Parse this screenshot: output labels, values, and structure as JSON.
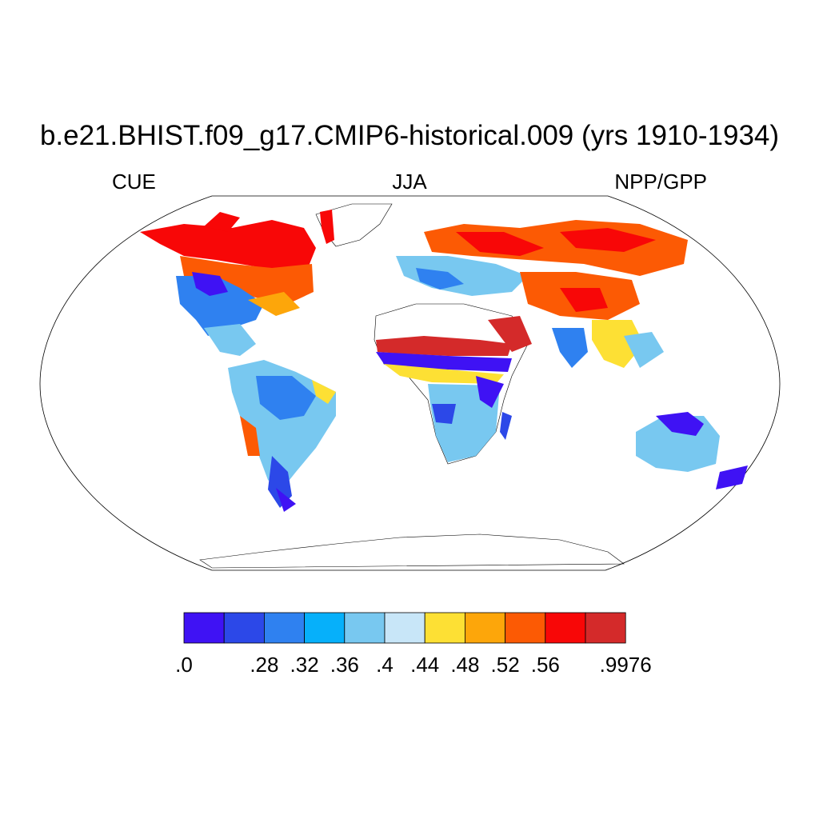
{
  "title": "b.e21.BHIST.f09_g17.CMIP6-historical.009 (yrs 1910-1934)",
  "left_label": "CUE",
  "center_label": "JJA",
  "right_label": "NPP/GPP",
  "colorbar": {
    "colors": [
      "#3f12f4",
      "#2c48e8",
      "#2f81f0",
      "#06b0fa",
      "#78c8f0",
      "#c8e6f8",
      "#fde034",
      "#fda60a",
      "#fc5a04",
      "#f80707",
      "#d42a2a"
    ],
    "tick_labels": [
      ".0",
      "",
      ".28",
      ".32",
      ".36",
      ".4",
      ".44",
      ".48",
      ".52",
      ".56",
      "",
      ".9976"
    ]
  },
  "map": {
    "projection": "robinson",
    "land_fill": "none",
    "ocean_fill": "#ffffff"
  }
}
